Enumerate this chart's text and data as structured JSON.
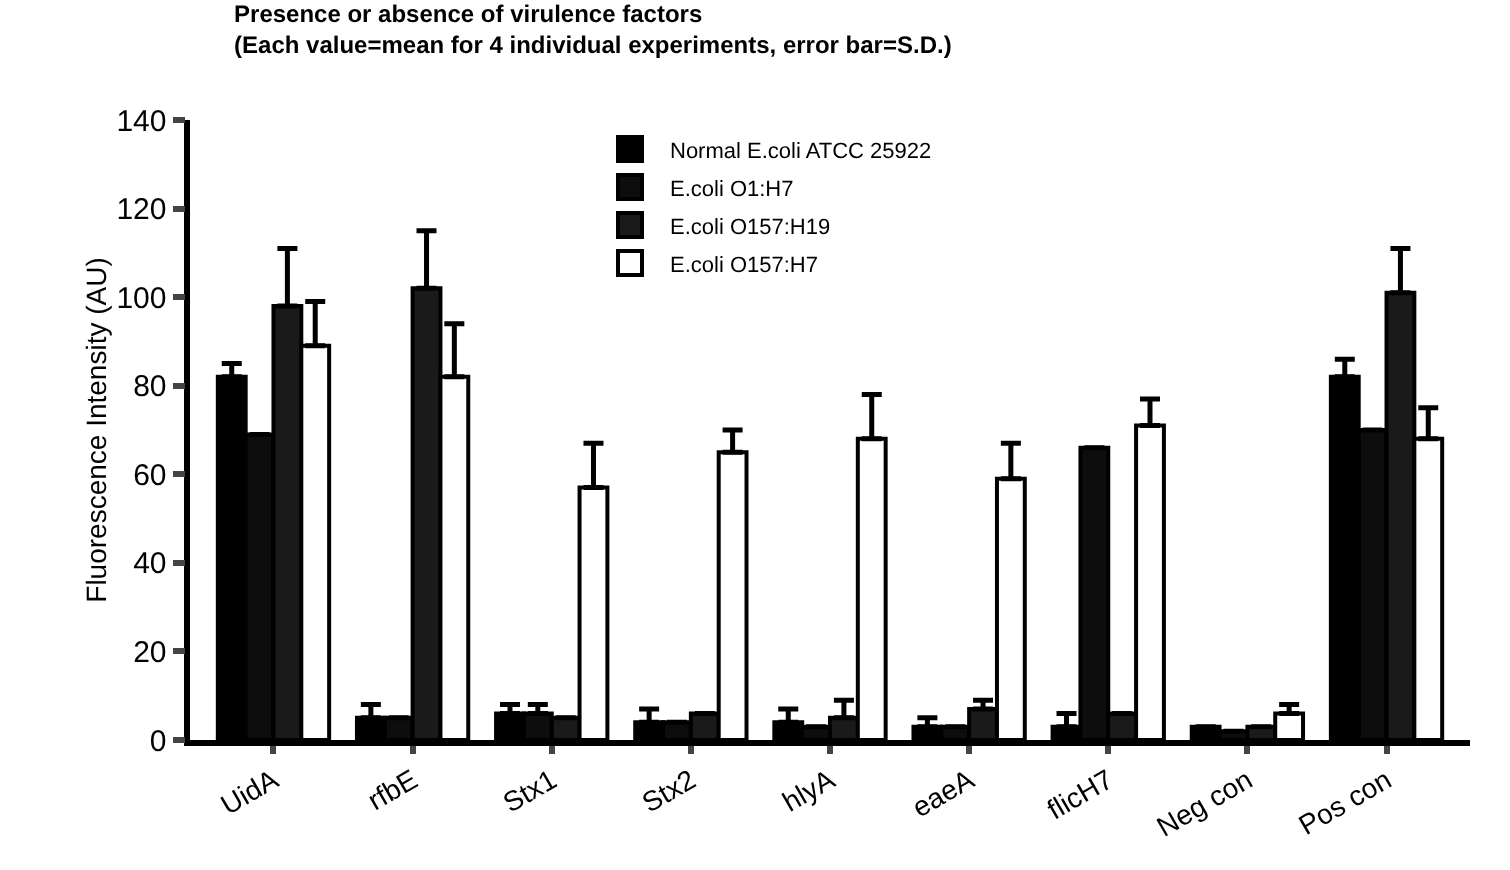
{
  "chart_data": {
    "type": "bar",
    "title": "Presence or absence of virulence factors",
    "subtitle": "(Each value=mean for 4 individual experiments, error bar=S.D.)",
    "ylabel": "Fluorescence Intensity (AU)",
    "categories": [
      "UidA",
      "rfbE",
      "Stx1",
      "Stx2",
      "hlyA",
      "eaeA",
      "flicH7",
      "Neg con",
      "Pos con"
    ],
    "series": [
      {
        "name": "Normal E.coli ATCC 25922",
        "color": "#000000",
        "values": [
          82,
          5,
          6,
          4,
          4,
          3,
          3,
          3,
          82
        ],
        "errors": [
          3,
          3,
          2,
          3,
          3,
          2,
          3,
          null,
          4
        ]
      },
      {
        "name": "E.coli O1:H7",
        "color": "#0d0d0d",
        "values": [
          69,
          5,
          6,
          4,
          3,
          3,
          66,
          2,
          70
        ],
        "errors": [
          null,
          null,
          2,
          null,
          null,
          null,
          null,
          null,
          null
        ]
      },
      {
        "name": "E.coli O157:H19",
        "color": "#1a1a1a",
        "values": [
          98,
          102,
          5,
          6,
          5,
          7,
          6,
          3,
          101
        ],
        "errors": [
          13,
          13,
          null,
          null,
          4,
          2,
          null,
          null,
          10
        ]
      },
      {
        "name": "E.coli O157:H7",
        "color": "#ffffff",
        "values": [
          89,
          82,
          57,
          65,
          68,
          59,
          71,
          6,
          68
        ],
        "errors": [
          10,
          12,
          10,
          5,
          10,
          8,
          6,
          2,
          7
        ]
      }
    ],
    "ylim": [
      0,
      140
    ],
    "yticks": [
      0,
      20,
      40,
      60,
      80,
      100,
      120,
      140
    ],
    "grid": false,
    "legend": "top"
  }
}
